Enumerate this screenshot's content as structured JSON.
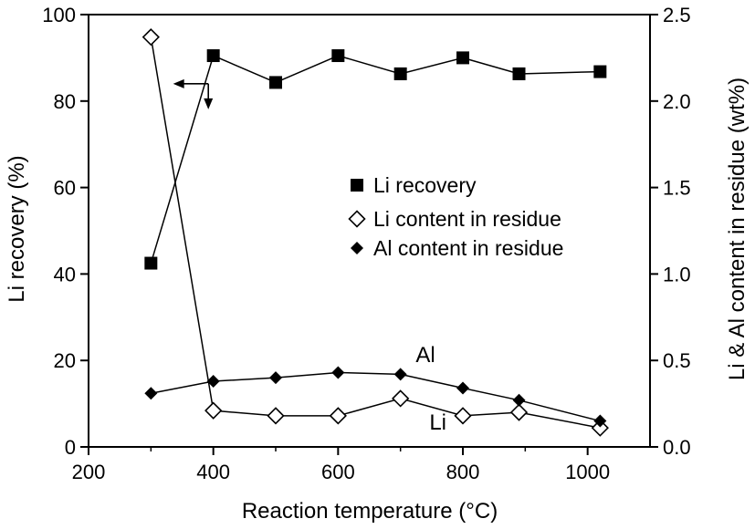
{
  "chart_data": {
    "type": "line",
    "xlabel": "Reaction temperature (°C)",
    "ylabel_left": "Li recovery (%)",
    "ylabel_right": "Li & Al content in residue (wt%)",
    "xlim": [
      200,
      1100
    ],
    "xticks": [
      200,
      400,
      600,
      800,
      1000
    ],
    "ylim_left": [
      0,
      100
    ],
    "yticks_left": [
      0,
      20,
      40,
      60,
      80,
      100
    ],
    "ylim_right": [
      0,
      2.5
    ],
    "yticks_right": [
      "0.0",
      "0.5",
      "1.0",
      "1.5",
      "2.0",
      "2.5"
    ],
    "grid": false,
    "legend_position": "center-right",
    "series": [
      {
        "name": "Li recovery",
        "axis": "left",
        "marker": "filled-square",
        "x": [
          300,
          400,
          500,
          600,
          700,
          800,
          890,
          1020
        ],
        "y": [
          42.5,
          90.5,
          84.3,
          90.5,
          86.3,
          90.0,
          86.3,
          86.8
        ]
      },
      {
        "name": "Li content in residue",
        "axis": "right",
        "marker": "open-diamond",
        "x": [
          300,
          400,
          500,
          600,
          700,
          800,
          890,
          1020
        ],
        "y": [
          2.37,
          0.21,
          0.18,
          0.18,
          0.28,
          0.18,
          0.2,
          0.11
        ]
      },
      {
        "name": "Al content in residue",
        "axis": "right",
        "marker": "filled-diamond",
        "x": [
          300,
          400,
          500,
          600,
          700,
          800,
          890,
          1020
        ],
        "y": [
          0.31,
          0.38,
          0.4,
          0.43,
          0.42,
          0.34,
          0.27,
          0.15
        ]
      }
    ],
    "annotations": [
      {
        "text": "Al",
        "x": 740,
        "y_right": 0.49
      },
      {
        "text": "Li",
        "x": 760,
        "y_right": 0.1
      }
    ]
  }
}
